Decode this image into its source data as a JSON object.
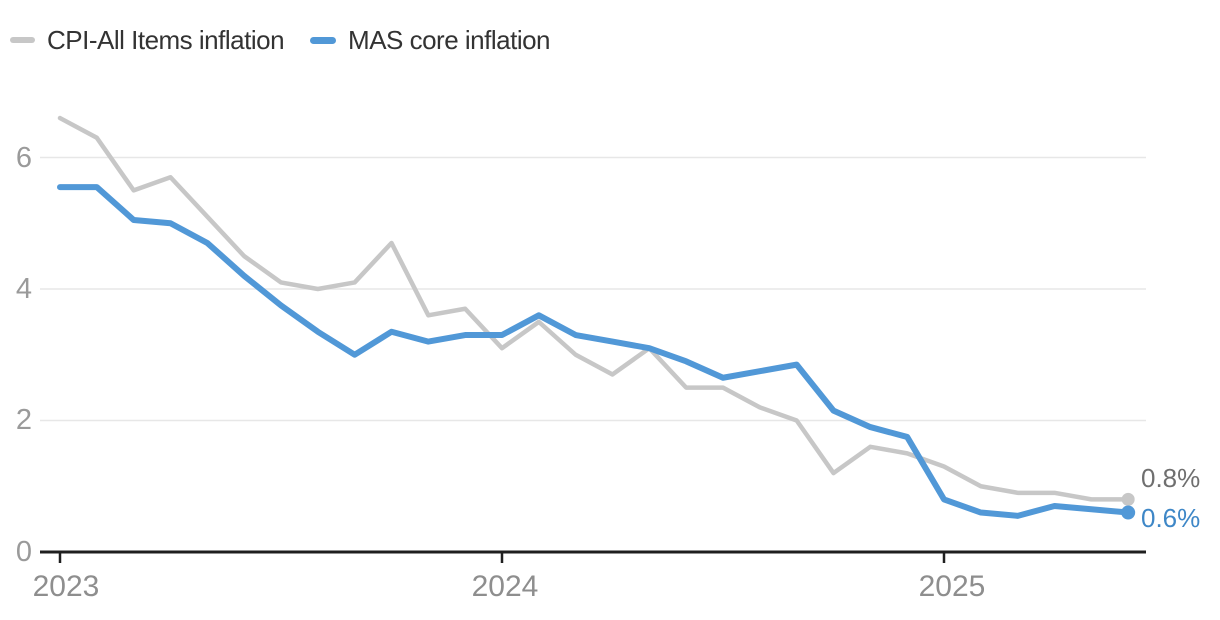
{
  "chart_data": {
    "type": "line",
    "title": "",
    "x": [
      "2023-01",
      "2023-02",
      "2023-03",
      "2023-04",
      "2023-05",
      "2023-06",
      "2023-07",
      "2023-08",
      "2023-09",
      "2023-10",
      "2023-11",
      "2023-12",
      "2024-01",
      "2024-02",
      "2024-03",
      "2024-04",
      "2024-05",
      "2024-06",
      "2024-07",
      "2024-08",
      "2024-09",
      "2024-10",
      "2024-11",
      "2024-12",
      "2025-01",
      "2025-02",
      "2025-03",
      "2025-04",
      "2025-05",
      "2025-06"
    ],
    "series": [
      {
        "id": "cpi-all-items",
        "name": "CPI-All Items inflation",
        "color": "#c7c7c7",
        "stroke_width": 4.5,
        "marker_radius": 6.5,
        "values": [
          6.6,
          6.3,
          5.5,
          5.7,
          5.1,
          4.5,
          4.1,
          4.0,
          4.1,
          4.7,
          3.6,
          3.7,
          3.1,
          3.5,
          3.0,
          2.7,
          3.1,
          2.5,
          2.5,
          2.2,
          2.0,
          1.2,
          1.6,
          1.5,
          1.3,
          1.0,
          0.9,
          0.9,
          0.8,
          0.8
        ]
      },
      {
        "id": "mas-core",
        "name": "MAS core inflation",
        "color": "#5198d7",
        "stroke_width": 6,
        "marker_radius": 7,
        "values": [
          5.55,
          5.55,
          5.05,
          5.0,
          4.7,
          4.2,
          3.75,
          3.35,
          3.0,
          3.35,
          3.2,
          3.3,
          3.3,
          3.6,
          3.3,
          3.2,
          3.1,
          2.9,
          2.65,
          2.75,
          2.85,
          2.15,
          1.9,
          1.75,
          0.8,
          0.6,
          0.55,
          0.7,
          0.65,
          0.6
        ]
      }
    ],
    "end_labels": [
      {
        "text": "0.8%",
        "color": "#6f6f6f"
      },
      {
        "text": "0.6%",
        "color": "#3e87c7"
      }
    ],
    "y_axis": {
      "tick_labels": [
        "6",
        "4",
        "2",
        "0"
      ],
      "tick_values": [
        6,
        4,
        2,
        0
      ],
      "gridline_values": [
        6,
        4,
        2
      ],
      "range": [
        0,
        6.8
      ],
      "unit": "percent"
    },
    "x_axis": {
      "ticks": [
        {
          "label": "2023",
          "month_index": 0
        },
        {
          "label": "2024",
          "month_index": 12
        },
        {
          "label": "2025",
          "month_index": 24
        }
      ]
    },
    "grid": "horizontal",
    "legend_position": "top-left",
    "colors": {
      "gridline": "#e7e7e7",
      "axis": "#1f1f1f",
      "x_tick_label": "#8e8e8e",
      "y_tick_label": "#9a9a9a",
      "legend_text": "#333333"
    }
  }
}
